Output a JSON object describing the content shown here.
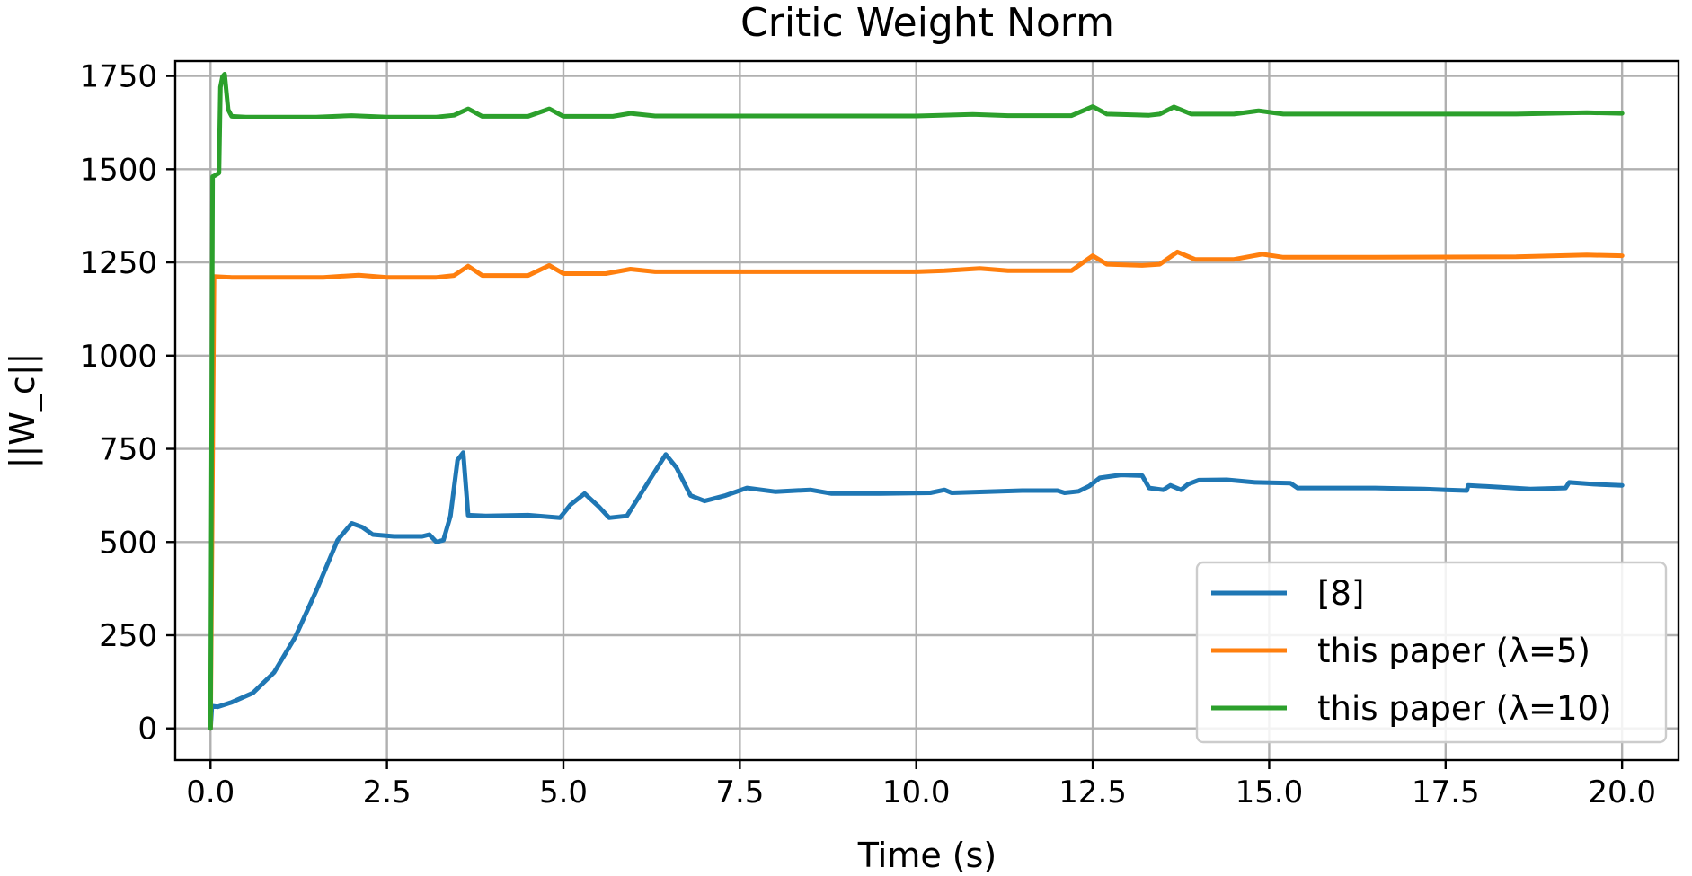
{
  "chart_data": {
    "type": "line",
    "title": "Critic Weight Norm",
    "xlabel": "Time (s)",
    "ylabel": "||W_c||",
    "xlim": [
      -0.5,
      20.8
    ],
    "ylim": [
      -85,
      1790
    ],
    "xticks": [
      0,
      2.5,
      5,
      7.5,
      10,
      12.5,
      15,
      17.5,
      20
    ],
    "xtick_labels": [
      "0.0",
      "2.5",
      "5.0",
      "7.5",
      "10.0",
      "12.5",
      "15.0",
      "17.5",
      "20.0"
    ],
    "yticks": [
      0,
      250,
      500,
      750,
      1000,
      1250,
      1500,
      1750
    ],
    "ytick_labels": [
      "0",
      "250",
      "500",
      "750",
      "1000",
      "1250",
      "1500",
      "1750"
    ],
    "grid": true,
    "legend_position": "lower-right",
    "series": [
      {
        "name": "[8]",
        "color": "#1f77b4",
        "points": [
          [
            0,
            0
          ],
          [
            0.02,
            60
          ],
          [
            0.1,
            58
          ],
          [
            0.3,
            70
          ],
          [
            0.6,
            95
          ],
          [
            0.9,
            150
          ],
          [
            1.2,
            245
          ],
          [
            1.5,
            370
          ],
          [
            1.8,
            505
          ],
          [
            2.0,
            550
          ],
          [
            2.15,
            540
          ],
          [
            2.3,
            520
          ],
          [
            2.6,
            515
          ],
          [
            3.0,
            515
          ],
          [
            3.1,
            520
          ],
          [
            3.2,
            500
          ],
          [
            3.3,
            505
          ],
          [
            3.4,
            570
          ],
          [
            3.5,
            720
          ],
          [
            3.58,
            740
          ],
          [
            3.65,
            572
          ],
          [
            3.9,
            570
          ],
          [
            4.5,
            572
          ],
          [
            4.95,
            565
          ],
          [
            5.1,
            600
          ],
          [
            5.3,
            630
          ],
          [
            5.5,
            595
          ],
          [
            5.65,
            565
          ],
          [
            5.9,
            570
          ],
          [
            6.2,
            660
          ],
          [
            6.45,
            735
          ],
          [
            6.6,
            700
          ],
          [
            6.8,
            625
          ],
          [
            7.0,
            610
          ],
          [
            7.3,
            625
          ],
          [
            7.6,
            645
          ],
          [
            8.0,
            635
          ],
          [
            8.5,
            640
          ],
          [
            8.8,
            630
          ],
          [
            9.5,
            630
          ],
          [
            10.2,
            632
          ],
          [
            10.4,
            640
          ],
          [
            10.5,
            632
          ],
          [
            11.0,
            635
          ],
          [
            11.5,
            638
          ],
          [
            12.0,
            638
          ],
          [
            12.1,
            632
          ],
          [
            12.3,
            636
          ],
          [
            12.45,
            650
          ],
          [
            12.6,
            672
          ],
          [
            12.9,
            680
          ],
          [
            13.2,
            678
          ],
          [
            13.3,
            645
          ],
          [
            13.5,
            640
          ],
          [
            13.6,
            652
          ],
          [
            13.75,
            640
          ],
          [
            13.85,
            655
          ],
          [
            14.0,
            666
          ],
          [
            14.4,
            667
          ],
          [
            14.8,
            660
          ],
          [
            15.3,
            658
          ],
          [
            15.4,
            645
          ],
          [
            16.0,
            645
          ],
          [
            16.5,
            645
          ],
          [
            17.2,
            642
          ],
          [
            17.5,
            640
          ],
          [
            17.8,
            638
          ],
          [
            17.82,
            652
          ],
          [
            18.2,
            648
          ],
          [
            18.7,
            642
          ],
          [
            19.2,
            645
          ],
          [
            19.25,
            660
          ],
          [
            19.6,
            655
          ],
          [
            20.0,
            652
          ]
        ]
      },
      {
        "name": "this paper (λ=5)",
        "color": "#ff7f0e",
        "points": [
          [
            0,
            0
          ],
          [
            0.05,
            1212
          ],
          [
            0.3,
            1210
          ],
          [
            1.0,
            1210
          ],
          [
            1.6,
            1210
          ],
          [
            2.1,
            1216
          ],
          [
            2.5,
            1210
          ],
          [
            3.2,
            1210
          ],
          [
            3.45,
            1215
          ],
          [
            3.65,
            1240
          ],
          [
            3.85,
            1215
          ],
          [
            4.5,
            1215
          ],
          [
            4.8,
            1242
          ],
          [
            5.0,
            1220
          ],
          [
            5.6,
            1220
          ],
          [
            5.95,
            1232
          ],
          [
            6.3,
            1225
          ],
          [
            7.5,
            1225
          ],
          [
            9.0,
            1225
          ],
          [
            10.0,
            1225
          ],
          [
            10.4,
            1228
          ],
          [
            10.9,
            1234
          ],
          [
            11.3,
            1228
          ],
          [
            12.2,
            1228
          ],
          [
            12.5,
            1268
          ],
          [
            12.7,
            1245
          ],
          [
            13.2,
            1242
          ],
          [
            13.45,
            1245
          ],
          [
            13.7,
            1278
          ],
          [
            13.95,
            1258
          ],
          [
            14.5,
            1258
          ],
          [
            14.9,
            1272
          ],
          [
            15.2,
            1264
          ],
          [
            16.5,
            1264
          ],
          [
            18.5,
            1265
          ],
          [
            19.5,
            1270
          ],
          [
            20.0,
            1268
          ]
        ]
      },
      {
        "name": "this paper (λ=10)",
        "color": "#2ca02c",
        "points": [
          [
            0,
            0
          ],
          [
            0.03,
            1480
          ],
          [
            0.08,
            1485
          ],
          [
            0.12,
            1490
          ],
          [
            0.14,
            1720
          ],
          [
            0.17,
            1748
          ],
          [
            0.2,
            1755
          ],
          [
            0.25,
            1660
          ],
          [
            0.3,
            1642
          ],
          [
            0.5,
            1640
          ],
          [
            1.0,
            1640
          ],
          [
            1.5,
            1640
          ],
          [
            2.0,
            1644
          ],
          [
            2.5,
            1640
          ],
          [
            3.2,
            1640
          ],
          [
            3.45,
            1645
          ],
          [
            3.65,
            1662
          ],
          [
            3.85,
            1642
          ],
          [
            4.5,
            1642
          ],
          [
            4.8,
            1662
          ],
          [
            5.0,
            1642
          ],
          [
            5.7,
            1642
          ],
          [
            5.95,
            1650
          ],
          [
            6.3,
            1643
          ],
          [
            8.0,
            1643
          ],
          [
            10.0,
            1643
          ],
          [
            10.8,
            1647
          ],
          [
            11.3,
            1644
          ],
          [
            12.2,
            1644
          ],
          [
            12.5,
            1668
          ],
          [
            12.7,
            1648
          ],
          [
            13.3,
            1645
          ],
          [
            13.45,
            1648
          ],
          [
            13.65,
            1667
          ],
          [
            13.9,
            1648
          ],
          [
            14.5,
            1648
          ],
          [
            14.85,
            1657
          ],
          [
            15.2,
            1648
          ],
          [
            16.5,
            1648
          ],
          [
            18.5,
            1648
          ],
          [
            19.5,
            1652
          ],
          [
            20.0,
            1650
          ]
        ]
      }
    ]
  }
}
